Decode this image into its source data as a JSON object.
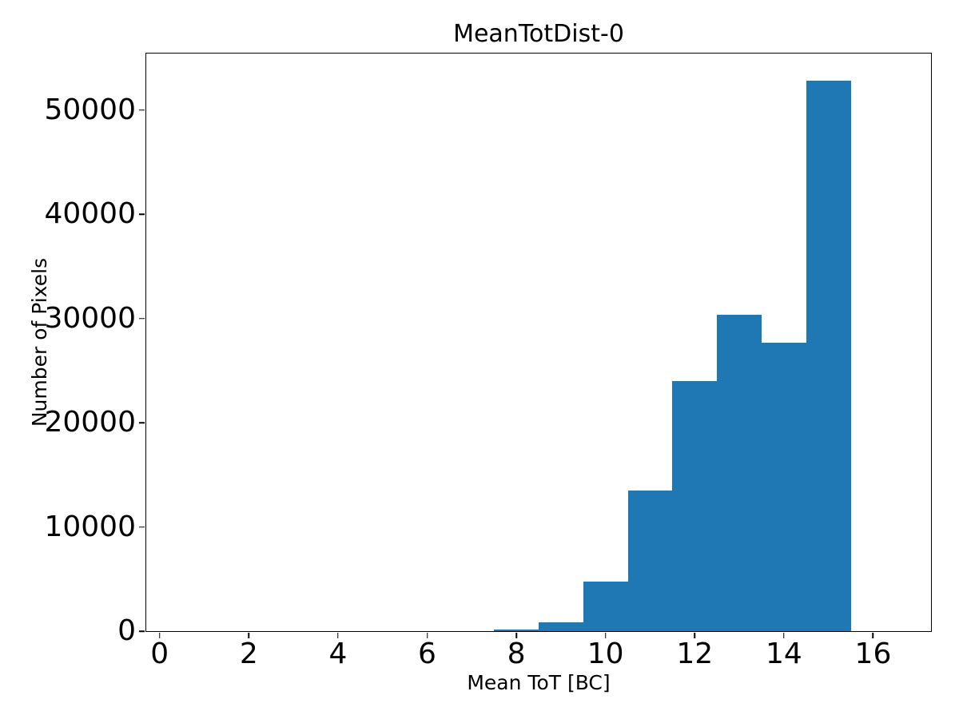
{
  "chart_data": {
    "type": "bar",
    "subtype": "histogram",
    "title": "MeanTotDist-0",
    "xlabel": "Mean ToT [BC]",
    "ylabel": "Number of Pixels",
    "bin_width": 1,
    "bin_centers": [
      1,
      2,
      3,
      4,
      5,
      6,
      7,
      8,
      9,
      10,
      11,
      12,
      13,
      14,
      15,
      16
    ],
    "bin_edges": [
      0.5,
      1.5,
      2.5,
      3.5,
      4.5,
      5.5,
      6.5,
      7.5,
      8.5,
      9.5,
      10.5,
      11.5,
      12.5,
      13.5,
      14.5,
      15.5,
      16.5
    ],
    "values": [
      0,
      0,
      0,
      0,
      0,
      0,
      0,
      150,
      850,
      4750,
      13500,
      24000,
      30400,
      27700,
      52800,
      0
    ],
    "xlim": [
      -0.3,
      17.3
    ],
    "ylim": [
      0,
      55440
    ],
    "xticks": [
      0,
      2,
      4,
      6,
      8,
      10,
      12,
      14,
      16
    ],
    "xtick_labels": [
      "0",
      "2",
      "4",
      "6",
      "8",
      "10",
      "12",
      "14",
      "16"
    ],
    "yticks": [
      0,
      10000,
      20000,
      30000,
      40000,
      50000
    ],
    "ytick_labels": [
      "0",
      "10000",
      "20000",
      "30000",
      "40000",
      "50000"
    ],
    "bar_color": "#1f77b4",
    "spine_color": "#000000",
    "grid": false,
    "legend_position": "none"
  }
}
